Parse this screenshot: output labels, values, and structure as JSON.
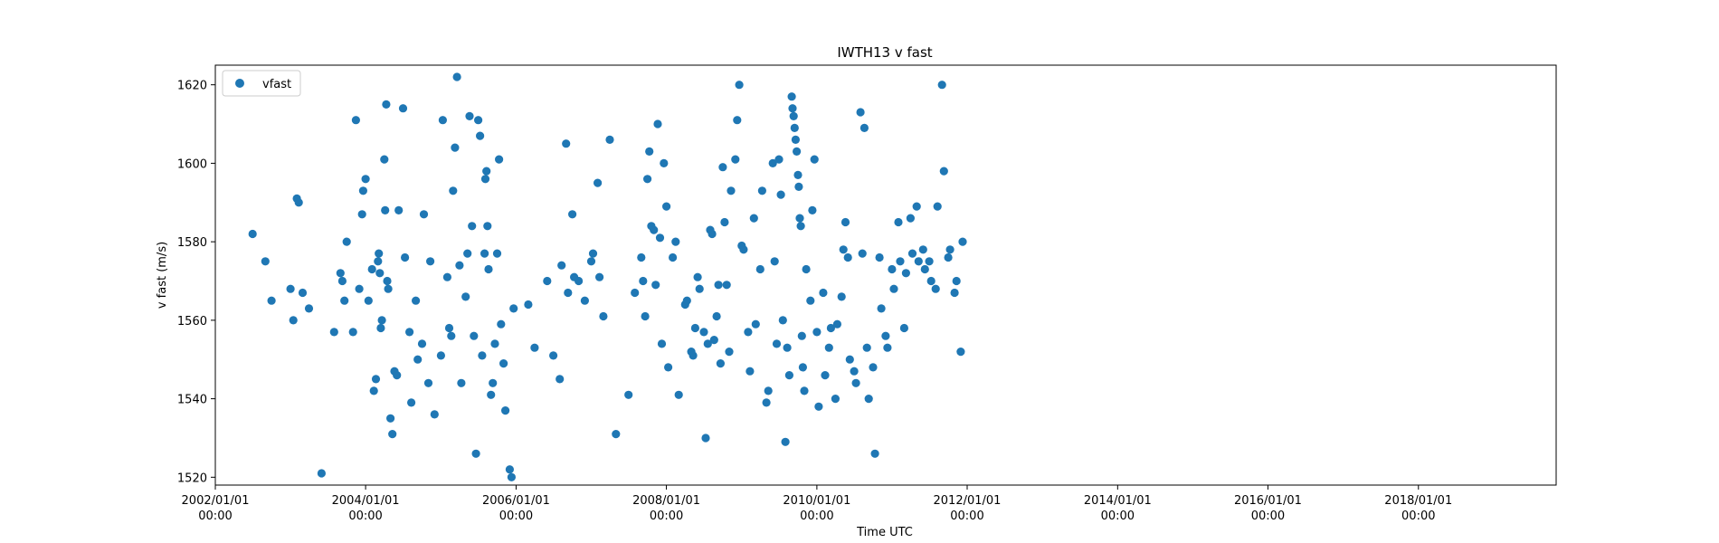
{
  "chart_data": {
    "type": "scatter",
    "title": "IWTH13 v fast",
    "xlabel": "Time UTC",
    "ylabel": "v fast (m/s)",
    "x_axis_kind": "date",
    "xlim": [
      "2002/01/01",
      "2019/11/01"
    ],
    "ylim": [
      1518,
      1625
    ],
    "grid": false,
    "legend_placement": "top-left",
    "marker_color": "#1f77b4",
    "x_ticks": [
      {
        "date_line": "2002/01/01",
        "time_line": "00:00"
      },
      {
        "date_line": "2004/01/01",
        "time_line": "00:00"
      },
      {
        "date_line": "2006/01/01",
        "time_line": "00:00"
      },
      {
        "date_line": "2008/01/01",
        "time_line": "00:00"
      },
      {
        "date_line": "2010/01/01",
        "time_line": "00:00"
      },
      {
        "date_line": "2012/01/01",
        "time_line": "00:00"
      },
      {
        "date_line": "2014/01/01",
        "time_line": "00:00"
      },
      {
        "date_line": "2016/01/01",
        "time_line": "00:00"
      },
      {
        "date_line": "2018/01/01",
        "time_line": "00:00"
      }
    ],
    "y_ticks": [
      1520,
      1540,
      1560,
      1580,
      1600,
      1620
    ],
    "series": [
      {
        "name": "vfast",
        "points": [
          [
            "2002/07/01",
            1582
          ],
          [
            "2002/09/01",
            1575
          ],
          [
            "2002/10/01",
            1565
          ],
          [
            "2003/01/01",
            1568
          ],
          [
            "2003/01/15",
            1560
          ],
          [
            "2003/02/01",
            1591
          ],
          [
            "2003/02/10",
            1590
          ],
          [
            "2003/03/01",
            1567
          ],
          [
            "2003/04/01",
            1563
          ],
          [
            "2003/06/01",
            1521
          ],
          [
            "2003/08/01",
            1557
          ],
          [
            "2003/09/01",
            1572
          ],
          [
            "2003/09/10",
            1570
          ],
          [
            "2003/09/20",
            1565
          ],
          [
            "2003/10/01",
            1580
          ],
          [
            "2003/11/01",
            1557
          ],
          [
            "2003/11/15",
            1611
          ],
          [
            "2003/12/01",
            1568
          ],
          [
            "2003/12/15",
            1587
          ],
          [
            "2003/12/20",
            1593
          ],
          [
            "2004/01/01",
            1596
          ],
          [
            "2004/01/15",
            1565
          ],
          [
            "2004/02/01",
            1573
          ],
          [
            "2004/02/10",
            1542
          ],
          [
            "2004/02/20",
            1545
          ],
          [
            "2004/03/01",
            1575
          ],
          [
            "2004/03/05",
            1577
          ],
          [
            "2004/03/10",
            1572
          ],
          [
            "2004/03/15",
            1558
          ],
          [
            "2004/03/20",
            1560
          ],
          [
            "2004/04/01",
            1601
          ],
          [
            "2004/04/05",
            1588
          ],
          [
            "2004/04/10",
            1615
          ],
          [
            "2004/04/15",
            1570
          ],
          [
            "2004/04/20",
            1568
          ],
          [
            "2004/05/01",
            1535
          ],
          [
            "2004/05/10",
            1531
          ],
          [
            "2004/05/20",
            1547
          ],
          [
            "2004/06/01",
            1546
          ],
          [
            "2004/06/10",
            1588
          ],
          [
            "2004/07/01",
            1614
          ],
          [
            "2004/07/10",
            1576
          ],
          [
            "2004/08/01",
            1557
          ],
          [
            "2004/08/10",
            1539
          ],
          [
            "2004/09/01",
            1565
          ],
          [
            "2004/09/10",
            1550
          ],
          [
            "2004/10/01",
            1554
          ],
          [
            "2004/10/10",
            1587
          ],
          [
            "2004/11/01",
            1544
          ],
          [
            "2004/11/10",
            1575
          ],
          [
            "2004/12/01",
            1536
          ],
          [
            "2005/01/01",
            1551
          ],
          [
            "2005/01/10",
            1611
          ],
          [
            "2005/02/01",
            1571
          ],
          [
            "2005/02/10",
            1558
          ],
          [
            "2005/02/20",
            1556
          ],
          [
            "2005/03/01",
            1593
          ],
          [
            "2005/03/10",
            1604
          ],
          [
            "2005/03/20",
            1622
          ],
          [
            "2005/04/01",
            1574
          ],
          [
            "2005/04/10",
            1544
          ],
          [
            "2005/05/01",
            1566
          ],
          [
            "2005/05/10",
            1577
          ],
          [
            "2005/05/20",
            1612
          ],
          [
            "2005/06/01",
            1584
          ],
          [
            "2005/06/10",
            1556
          ],
          [
            "2005/06/20",
            1526
          ],
          [
            "2005/07/01",
            1611
          ],
          [
            "2005/07/10",
            1607
          ],
          [
            "2005/07/20",
            1551
          ],
          [
            "2005/08/01",
            1577
          ],
          [
            "2005/08/05",
            1596
          ],
          [
            "2005/08/10",
            1598
          ],
          [
            "2005/08/15",
            1584
          ],
          [
            "2005/08/20",
            1573
          ],
          [
            "2005/09/01",
            1541
          ],
          [
            "2005/09/10",
            1544
          ],
          [
            "2005/09/20",
            1554
          ],
          [
            "2005/10/01",
            1577
          ],
          [
            "2005/10/10",
            1601
          ],
          [
            "2005/10/20",
            1559
          ],
          [
            "2005/11/01",
            1549
          ],
          [
            "2005/11/10",
            1537
          ],
          [
            "2005/12/01",
            1522
          ],
          [
            "2005/12/10",
            1520
          ],
          [
            "2005/12/20",
            1563
          ],
          [
            "2006/03/01",
            1564
          ],
          [
            "2006/04/01",
            1553
          ],
          [
            "2006/06/01",
            1570
          ],
          [
            "2006/07/01",
            1551
          ],
          [
            "2006/08/01",
            1545
          ],
          [
            "2006/08/10",
            1574
          ],
          [
            "2006/09/01",
            1605
          ],
          [
            "2006/09/10",
            1567
          ],
          [
            "2006/10/01",
            1587
          ],
          [
            "2006/10/10",
            1571
          ],
          [
            "2006/11/01",
            1570
          ],
          [
            "2006/12/01",
            1565
          ],
          [
            "2007/01/01",
            1575
          ],
          [
            "2007/01/10",
            1577
          ],
          [
            "2007/02/01",
            1595
          ],
          [
            "2007/02/10",
            1571
          ],
          [
            "2007/03/01",
            1561
          ],
          [
            "2007/04/01",
            1606
          ],
          [
            "2007/05/01",
            1531
          ],
          [
            "2007/07/01",
            1541
          ],
          [
            "2007/08/01",
            1567
          ],
          [
            "2007/09/01",
            1576
          ],
          [
            "2007/09/10",
            1570
          ],
          [
            "2007/09/20",
            1561
          ],
          [
            "2007/10/01",
            1596
          ],
          [
            "2007/10/10",
            1603
          ],
          [
            "2007/10/20",
            1584
          ],
          [
            "2007/11/01",
            1583
          ],
          [
            "2007/11/10",
            1569
          ],
          [
            "2007/11/20",
            1610
          ],
          [
            "2007/12/01",
            1581
          ],
          [
            "2007/12/10",
            1554
          ],
          [
            "2007/12/20",
            1600
          ],
          [
            "2008/01/01",
            1589
          ],
          [
            "2008/01/10",
            1548
          ],
          [
            "2008/02/01",
            1576
          ],
          [
            "2008/02/15",
            1580
          ],
          [
            "2008/03/01",
            1541
          ],
          [
            "2008/04/01",
            1564
          ],
          [
            "2008/04/10",
            1565
          ],
          [
            "2008/05/01",
            1552
          ],
          [
            "2008/05/10",
            1551
          ],
          [
            "2008/05/20",
            1558
          ],
          [
            "2008/06/01",
            1571
          ],
          [
            "2008/06/10",
            1568
          ],
          [
            "2008/07/01",
            1557
          ],
          [
            "2008/07/10",
            1530
          ],
          [
            "2008/07/20",
            1554
          ],
          [
            "2008/08/01",
            1583
          ],
          [
            "2008/08/10",
            1582
          ],
          [
            "2008/08/20",
            1555
          ],
          [
            "2008/09/01",
            1561
          ],
          [
            "2008/09/10",
            1569
          ],
          [
            "2008/09/20",
            1549
          ],
          [
            "2008/10/01",
            1599
          ],
          [
            "2008/10/10",
            1585
          ],
          [
            "2008/10/20",
            1569
          ],
          [
            "2008/11/01",
            1552
          ],
          [
            "2008/11/10",
            1593
          ],
          [
            "2008/12/01",
            1601
          ],
          [
            "2008/12/10",
            1611
          ],
          [
            "2008/12/20",
            1620
          ],
          [
            "2009/01/01",
            1579
          ],
          [
            "2009/01/10",
            1578
          ],
          [
            "2009/02/01",
            1557
          ],
          [
            "2009/02/10",
            1547
          ],
          [
            "2009/03/01",
            1586
          ],
          [
            "2009/03/10",
            1559
          ],
          [
            "2009/04/01",
            1573
          ],
          [
            "2009/04/10",
            1593
          ],
          [
            "2009/05/01",
            1539
          ],
          [
            "2009/05/10",
            1542
          ],
          [
            "2009/06/01",
            1600
          ],
          [
            "2009/06/10",
            1575
          ],
          [
            "2009/06/20",
            1554
          ],
          [
            "2009/07/01",
            1601
          ],
          [
            "2009/07/10",
            1592
          ],
          [
            "2009/07/20",
            1560
          ],
          [
            "2009/08/01",
            1529
          ],
          [
            "2009/08/10",
            1553
          ],
          [
            "2009/08/20",
            1546
          ],
          [
            "2009/09/01",
            1617
          ],
          [
            "2009/09/05",
            1614
          ],
          [
            "2009/09/10",
            1612
          ],
          [
            "2009/09/15",
            1609
          ],
          [
            "2009/09/20",
            1606
          ],
          [
            "2009/09/25",
            1603
          ],
          [
            "2009/10/01",
            1597
          ],
          [
            "2009/10/05",
            1594
          ],
          [
            "2009/10/10",
            1586
          ],
          [
            "2009/10/15",
            1584
          ],
          [
            "2009/10/20",
            1556
          ],
          [
            "2009/10/25",
            1548
          ],
          [
            "2009/11/01",
            1542
          ],
          [
            "2009/11/10",
            1573
          ],
          [
            "2009/12/01",
            1565
          ],
          [
            "2009/12/10",
            1588
          ],
          [
            "2009/12/20",
            1601
          ],
          [
            "2010/01/01",
            1557
          ],
          [
            "2010/01/10",
            1538
          ],
          [
            "2010/02/01",
            1567
          ],
          [
            "2010/02/10",
            1546
          ],
          [
            "2010/03/01",
            1553
          ],
          [
            "2010/03/10",
            1558
          ],
          [
            "2010/04/01",
            1540
          ],
          [
            "2010/04/10",
            1559
          ],
          [
            "2010/05/01",
            1566
          ],
          [
            "2010/05/10",
            1578
          ],
          [
            "2010/05/20",
            1585
          ],
          [
            "2010/06/01",
            1576
          ],
          [
            "2010/06/10",
            1550
          ],
          [
            "2010/07/01",
            1547
          ],
          [
            "2010/07/10",
            1544
          ],
          [
            "2010/08/01",
            1613
          ],
          [
            "2010/08/10",
            1577
          ],
          [
            "2010/08/20",
            1609
          ],
          [
            "2010/09/01",
            1553
          ],
          [
            "2010/09/10",
            1540
          ],
          [
            "2010/10/01",
            1548
          ],
          [
            "2010/10/10",
            1526
          ],
          [
            "2010/11/01",
            1576
          ],
          [
            "2010/11/10",
            1563
          ],
          [
            "2010/12/01",
            1556
          ],
          [
            "2010/12/10",
            1553
          ],
          [
            "2011/01/01",
            1573
          ],
          [
            "2011/01/10",
            1568
          ],
          [
            "2011/02/01",
            1585
          ],
          [
            "2011/02/10",
            1575
          ],
          [
            "2011/03/01",
            1558
          ],
          [
            "2011/03/10",
            1572
          ],
          [
            "2011/04/01",
            1586
          ],
          [
            "2011/04/10",
            1577
          ],
          [
            "2011/05/01",
            1589
          ],
          [
            "2011/05/10",
            1575
          ],
          [
            "2011/06/01",
            1578
          ],
          [
            "2011/06/10",
            1573
          ],
          [
            "2011/07/01",
            1575
          ],
          [
            "2011/07/10",
            1570
          ],
          [
            "2011/08/01",
            1568
          ],
          [
            "2011/08/10",
            1589
          ],
          [
            "2011/09/01",
            1620
          ],
          [
            "2011/09/10",
            1598
          ],
          [
            "2011/10/01",
            1576
          ],
          [
            "2011/10/10",
            1578
          ],
          [
            "2011/11/01",
            1567
          ],
          [
            "2011/11/10",
            1570
          ],
          [
            "2011/12/01",
            1552
          ],
          [
            "2011/12/10",
            1580
          ]
        ]
      }
    ]
  }
}
